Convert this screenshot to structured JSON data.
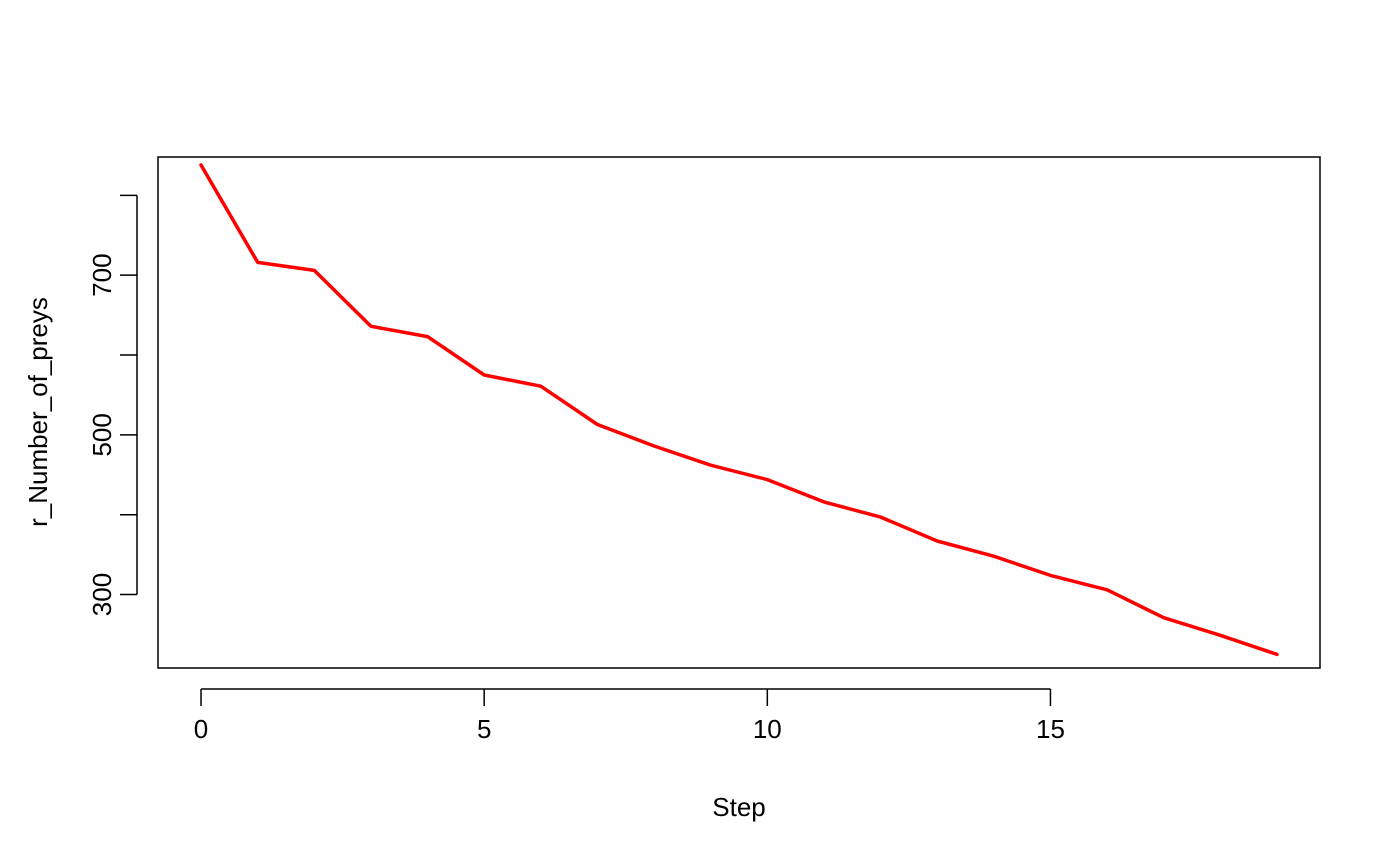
{
  "chart_data": {
    "type": "line",
    "xlabel": "Step",
    "ylabel": "r_Number_of_preys",
    "xlim": [
      -0.76,
      19.76
    ],
    "ylim": [
      208,
      848
    ],
    "x_ticks": [
      0,
      5,
      10,
      15
    ],
    "y_ticks": [
      300,
      400,
      500,
      600,
      700,
      800
    ],
    "y_tick_labels": [
      "300",
      "",
      "500",
      "",
      "700",
      ""
    ],
    "grid": false,
    "legend": "none",
    "series": [
      {
        "color": "#ff0000",
        "x": [
          0,
          1,
          2,
          3,
          4,
          5,
          6,
          7,
          8,
          9,
          10,
          11,
          12,
          13,
          14,
          15,
          16,
          17,
          18,
          19
        ],
        "y": [
          838,
          716,
          706,
          636,
          623,
          575,
          561,
          513,
          486,
          462,
          444,
          416,
          397,
          367,
          348,
          324,
          306,
          271,
          249,
          225
        ]
      }
    ]
  }
}
